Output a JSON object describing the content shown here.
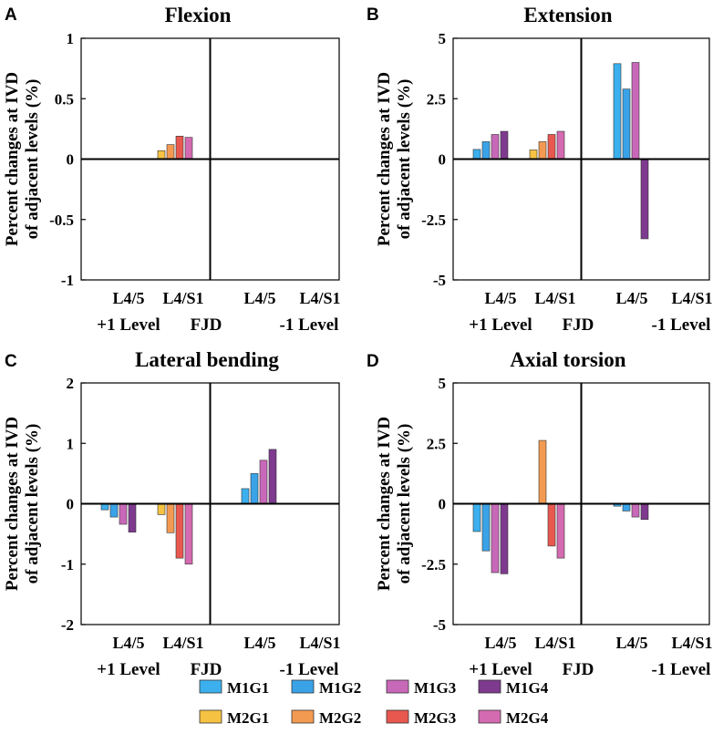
{
  "chart_data": [
    {
      "type": "bar",
      "panel_label": "A",
      "title": "Flexion",
      "ylabel_lines": [
        "Percent changes at IVD",
        "of adjacent levels (%)"
      ],
      "ylim": [
        -1,
        1
      ],
      "yticks": [
        "1",
        "0.5",
        "0",
        "-0.5",
        "-1"
      ],
      "ytick_values": [
        1,
        0.5,
        0,
        -0.5,
        -1
      ],
      "categories": [
        "L4/5",
        "L4/S1",
        "L4/5",
        "L4/S1"
      ],
      "group_labels": [
        "+1 Level",
        "FJD",
        "-1 Level"
      ],
      "series": [
        {
          "name": "M1G1",
          "values": [
            0,
            null,
            0,
            0
          ]
        },
        {
          "name": "M1G2",
          "values": [
            0,
            null,
            0,
            0
          ]
        },
        {
          "name": "M1G3",
          "values": [
            0,
            null,
            0,
            0
          ]
        },
        {
          "name": "M1G4",
          "values": [
            0,
            null,
            0,
            0
          ]
        },
        {
          "name": "M2G1",
          "values": [
            null,
            0.07,
            null,
            null
          ]
        },
        {
          "name": "M2G2",
          "values": [
            null,
            0.12,
            null,
            null
          ]
        },
        {
          "name": "M2G3",
          "values": [
            null,
            0.19,
            null,
            null
          ]
        },
        {
          "name": "M2G4",
          "values": [
            null,
            0.18,
            null,
            null
          ]
        }
      ]
    },
    {
      "type": "bar",
      "panel_label": "B",
      "title": "Extension",
      "ylabel_lines": [
        "Percent changes at IVD",
        "of adjacent levels (%)"
      ],
      "ylim": [
        -5,
        5
      ],
      "yticks": [
        "5",
        "2.5",
        "0",
        "-2.5",
        "-5"
      ],
      "ytick_values": [
        5,
        2.5,
        0,
        -2.5,
        -5
      ],
      "categories": [
        "L4/5",
        "L4/S1",
        "L4/5",
        "L4/S1"
      ],
      "group_labels": [
        "+1 Level",
        "FJD",
        "-1 Level"
      ],
      "series": [
        {
          "name": "M1G1",
          "values": [
            0.4,
            null,
            3.95,
            0
          ]
        },
        {
          "name": "M1G2",
          "values": [
            0.72,
            null,
            2.9,
            0
          ]
        },
        {
          "name": "M1G3",
          "values": [
            1.02,
            null,
            4.0,
            0
          ]
        },
        {
          "name": "M1G4",
          "values": [
            1.15,
            null,
            -3.3,
            0
          ]
        },
        {
          "name": "M2G1",
          "values": [
            null,
            0.38,
            null,
            null
          ]
        },
        {
          "name": "M2G2",
          "values": [
            null,
            0.72,
            null,
            null
          ]
        },
        {
          "name": "M2G3",
          "values": [
            null,
            1.02,
            null,
            null
          ]
        },
        {
          "name": "M2G4",
          "values": [
            null,
            1.15,
            null,
            null
          ]
        }
      ]
    },
    {
      "type": "bar",
      "panel_label": "C",
      "title": "Lateral bending",
      "ylabel_lines": [
        "Percent changes at IVD",
        "of adjacent levels (%)"
      ],
      "ylim": [
        -2,
        2
      ],
      "yticks": [
        "2",
        "1",
        "0",
        "-1",
        "-2"
      ],
      "ytick_values": [
        2,
        1,
        0,
        -1,
        -2
      ],
      "categories": [
        "L4/5",
        "L4/S1",
        "L4/5",
        "L4/S1"
      ],
      "group_labels": [
        "+1 Level",
        "FJD",
        "-1 Level"
      ],
      "series": [
        {
          "name": "M1G1",
          "values": [
            -0.1,
            null,
            0.25,
            0
          ]
        },
        {
          "name": "M1G2",
          "values": [
            -0.22,
            null,
            0.5,
            0
          ]
        },
        {
          "name": "M1G3",
          "values": [
            -0.34,
            null,
            0.72,
            0
          ]
        },
        {
          "name": "M1G4",
          "values": [
            -0.47,
            null,
            0.9,
            0
          ]
        },
        {
          "name": "M2G1",
          "values": [
            null,
            -0.18,
            null,
            null
          ]
        },
        {
          "name": "M2G2",
          "values": [
            null,
            -0.48,
            null,
            null
          ]
        },
        {
          "name": "M2G3",
          "values": [
            null,
            -0.9,
            null,
            null
          ]
        },
        {
          "name": "M2G4",
          "values": [
            null,
            -1.0,
            null,
            null
          ]
        }
      ]
    },
    {
      "type": "bar",
      "panel_label": "D",
      "title": "Axial torsion",
      "ylabel_lines": [
        "Percent changes at IVD",
        "of adjacent levels (%)"
      ],
      "ylim": [
        -5,
        5
      ],
      "yticks": [
        "5",
        "2.5",
        "0",
        "-2.5",
        "-5"
      ],
      "ytick_values": [
        5,
        2.5,
        0,
        -2.5,
        -5
      ],
      "categories": [
        "L4/5",
        "L4/S1",
        "L4/5",
        "L4/S1"
      ],
      "group_labels": [
        "+1 Level",
        "FJD",
        "-1 Level"
      ],
      "series": [
        {
          "name": "M1G1",
          "values": [
            -1.15,
            null,
            -0.1,
            0
          ]
        },
        {
          "name": "M1G2",
          "values": [
            -1.95,
            null,
            -0.3,
            0
          ]
        },
        {
          "name": "M1G3",
          "values": [
            -2.85,
            null,
            -0.55,
            0
          ]
        },
        {
          "name": "M1G4",
          "values": [
            -2.9,
            null,
            -0.65,
            0
          ]
        },
        {
          "name": "M2G1",
          "values": [
            null,
            0,
            null,
            null
          ]
        },
        {
          "name": "M2G2",
          "values": [
            null,
            2.62,
            null,
            null
          ]
        },
        {
          "name": "M2G3",
          "values": [
            null,
            -1.75,
            null,
            null
          ]
        },
        {
          "name": "M2G4",
          "values": [
            null,
            -2.25,
            null,
            null
          ]
        }
      ]
    }
  ],
  "legend": [
    {
      "name": "M1G1",
      "color": "#3cb0ee"
    },
    {
      "name": "M1G2",
      "color": "#3aa3e8"
    },
    {
      "name": "M1G3",
      "color": "#c868b8"
    },
    {
      "name": "M1G4",
      "color": "#7e3a8e"
    },
    {
      "name": "M2G1",
      "color": "#f5c242"
    },
    {
      "name": "M2G2",
      "color": "#f39a52"
    },
    {
      "name": "M2G3",
      "color": "#e8584f"
    },
    {
      "name": "M2G4",
      "color": "#d46ab0"
    }
  ]
}
